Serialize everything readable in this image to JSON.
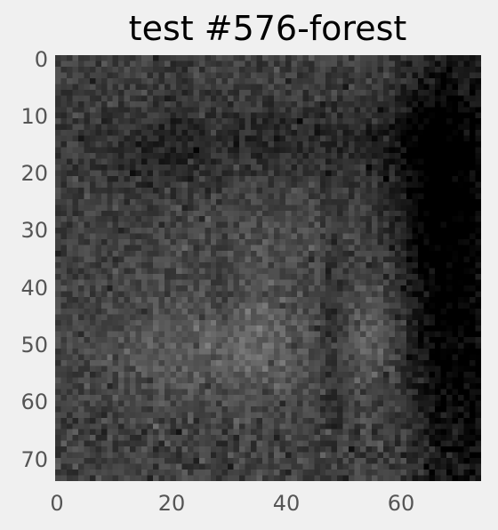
{
  "title": "test #576-forest",
  "image": {
    "description_icon": "grayscale-forest-image",
    "colormap": "gray",
    "grid_visible": false
  },
  "chart_data": {
    "type": "heatmap",
    "title": "test #576-forest",
    "xlabel": "",
    "ylabel": "",
    "x_ticks": [
      0,
      20,
      40,
      60
    ],
    "y_ticks": [
      0,
      10,
      20,
      30,
      40,
      50,
      60,
      70
    ],
    "xlim": [
      0,
      74
    ],
    "ylim": [
      74,
      0
    ],
    "grid": false
  }
}
